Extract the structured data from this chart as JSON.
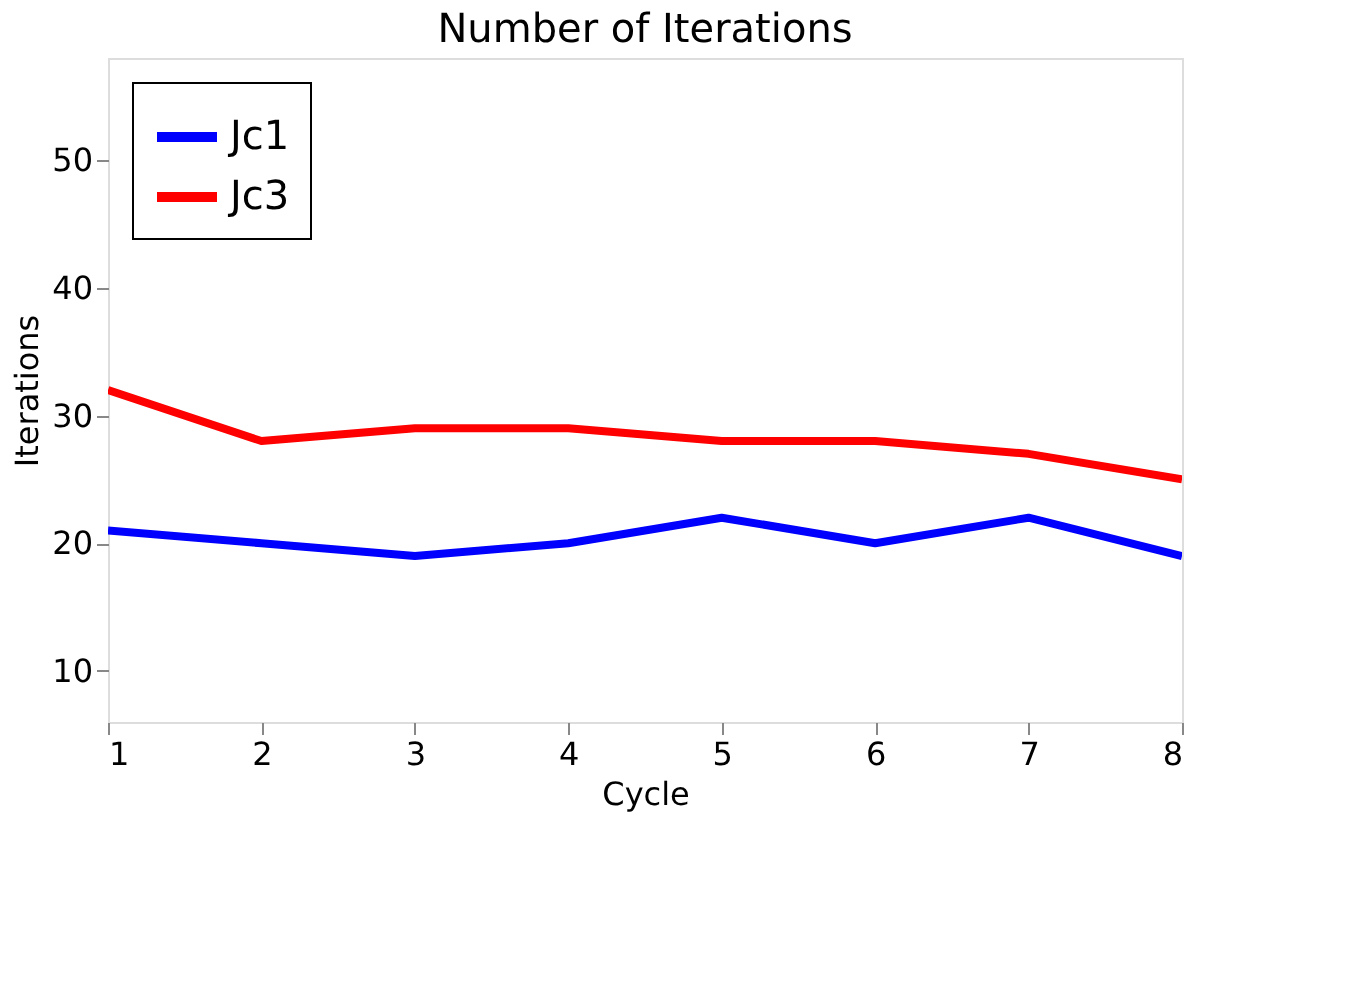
{
  "chart_data": {
    "type": "line",
    "title": "Number of Iterations",
    "xlabel": "Cycle",
    "ylabel": "Iterations",
    "x": [
      1,
      2,
      3,
      4,
      5,
      6,
      7,
      8
    ],
    "series": [
      {
        "name": "Jc1",
        "color": "#0000ff",
        "values": [
          21,
          20,
          19,
          20,
          22,
          20,
          22,
          19
        ]
      },
      {
        "name": "Jc3",
        "color": "#ff0000",
        "values": [
          32,
          28,
          29,
          29,
          28,
          28,
          27,
          25
        ]
      }
    ],
    "xlim": [
      1,
      8
    ],
    "xticks": [
      1,
      2,
      3,
      4,
      5,
      6,
      7,
      8
    ],
    "ylim": [
      6,
      58
    ],
    "yticks": [
      10,
      20,
      30,
      40,
      50
    ],
    "legend": "top left",
    "grid": false,
    "marker": "none",
    "line_style": "solid"
  }
}
